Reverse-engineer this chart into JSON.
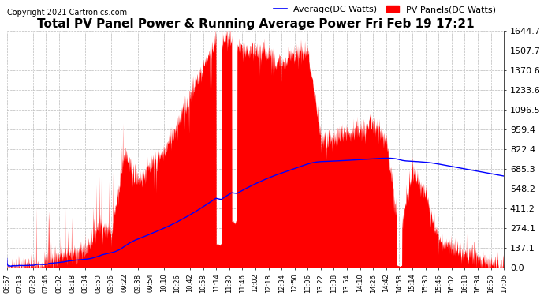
{
  "title": "Total PV Panel Power & Running Average Power Fri Feb 19 17:21",
  "copyright": "Copyright 2021 Cartronics.com",
  "legend_avg": "Average(DC Watts)",
  "legend_pv": "PV Panels(DC Watts)",
  "yticks": [
    0.0,
    137.1,
    274.1,
    411.2,
    548.2,
    685.3,
    822.4,
    959.4,
    1096.5,
    1233.6,
    1370.6,
    1507.7,
    1644.7
  ],
  "xtick_labels": [
    "06:57",
    "07:13",
    "07:29",
    "07:46",
    "08:02",
    "08:18",
    "08:34",
    "08:50",
    "09:06",
    "09:22",
    "09:38",
    "09:54",
    "10:10",
    "10:26",
    "10:42",
    "10:58",
    "11:14",
    "11:30",
    "11:46",
    "12:02",
    "12:18",
    "12:34",
    "12:50",
    "13:06",
    "13:22",
    "13:38",
    "13:54",
    "14:10",
    "14:26",
    "14:42",
    "14:58",
    "15:14",
    "15:30",
    "15:46",
    "16:02",
    "16:18",
    "16:34",
    "16:50",
    "17:06"
  ],
  "bg_color": "#ffffff",
  "pv_color": "#ff0000",
  "avg_color": "#0000ff",
  "grid_color": "#aaaaaa",
  "title_color": "#000000",
  "copyright_color": "#000000",
  "legend_avg_color": "#0000ff",
  "legend_pv_color": "#ff0000",
  "ymax": 1644.7,
  "ymin": 0.0,
  "title_fontsize": 11,
  "copyright_fontsize": 7,
  "legend_fontsize": 8,
  "ytick_fontsize": 8,
  "xtick_fontsize": 6
}
